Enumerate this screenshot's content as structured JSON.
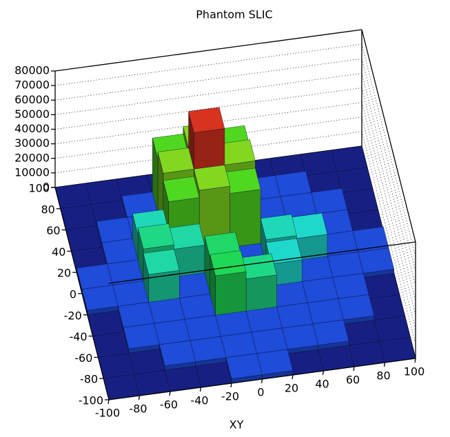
{
  "chart_data": {
    "type": "lego",
    "title": "Phantom  SLIC",
    "x_label": "XY",
    "x": [
      -90,
      -70,
      -50,
      -30,
      -10,
      10,
      30,
      50,
      70,
      90
    ],
    "y": [
      -90,
      -70,
      -50,
      -30,
      -10,
      10,
      30,
      50,
      70,
      90
    ],
    "z": [
      [
        0,
        0,
        0,
        0,
        3000,
        3000,
        0,
        0,
        0,
        0
      ],
      [
        0,
        0,
        3000,
        3000,
        3000,
        3000,
        3000,
        3000,
        0,
        0
      ],
      [
        0,
        3000,
        3000,
        3000,
        3000,
        3000,
        3000,
        3000,
        3000,
        0
      ],
      [
        0,
        3000,
        3000,
        3000,
        30000,
        25000,
        3000,
        3000,
        3000,
        0
      ],
      [
        3000,
        3000,
        22000,
        3000,
        28000,
        8000,
        18000,
        3000,
        3000,
        3000
      ],
      [
        3000,
        3000,
        25000,
        22000,
        3000,
        3000,
        20000,
        18000,
        3000,
        3000
      ],
      [
        0,
        3000,
        20000,
        40000,
        45000,
        40000,
        3000,
        3000,
        3000,
        0
      ],
      [
        0,
        3000,
        3000,
        45000,
        70000,
        45000,
        3000,
        3000,
        3000,
        0
      ],
      [
        0,
        0,
        3000,
        40000,
        45000,
        40000,
        3000,
        3000,
        0,
        0
      ],
      [
        0,
        0,
        0,
        0,
        3000,
        3000,
        0,
        0,
        0,
        0
      ]
    ],
    "xlim": [
      -100,
      100
    ],
    "ylim": [
      -100,
      100
    ],
    "zlim": [
      0,
      80000
    ],
    "xticks": [
      -100,
      -80,
      -60,
      -40,
      -20,
      0,
      20,
      40,
      60,
      80,
      100
    ],
    "yticks": [
      -100,
      -80,
      -60,
      -40,
      -20,
      0,
      20,
      40,
      60,
      80,
      100
    ],
    "zticks": [
      0,
      10000,
      20000,
      30000,
      40000,
      50000,
      60000,
      70000,
      80000
    ],
    "grid": true
  }
}
